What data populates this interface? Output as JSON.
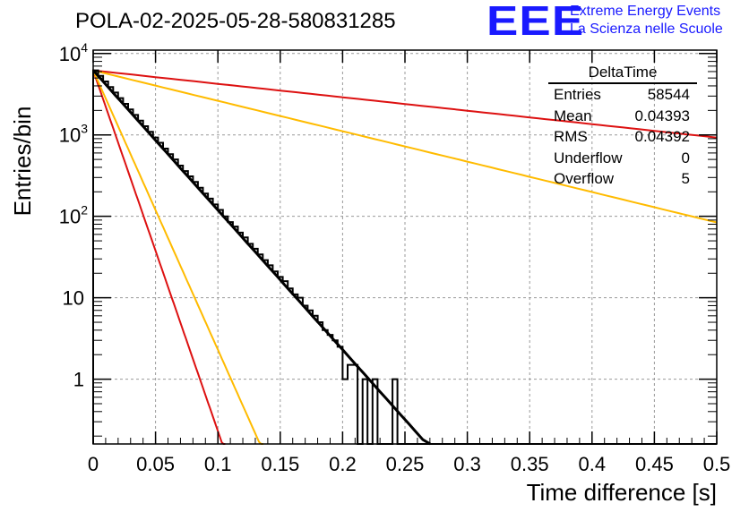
{
  "title": "POLA-02-2025-05-28-580831285",
  "logo": {
    "letters": "EEE",
    "line1": "Extreme Energy Events",
    "line2": "La Scienza nelle Scuole"
  },
  "stats_box": {
    "title": "DeltaTime",
    "rows": [
      {
        "label": "Entries",
        "value": "58544"
      },
      {
        "label": "Mean",
        "value": "0.04393"
      },
      {
        "label": "RMS",
        "value": "0.04392"
      },
      {
        "label": "Underflow",
        "value": "0"
      },
      {
        "label": "Overflow",
        "value": "5"
      }
    ]
  },
  "colors": {
    "histogram": "#000000",
    "fit": "#000000",
    "red": "#dd1111",
    "orange": "#ffbb00",
    "grid": "#999999",
    "logo": "#1a1aff"
  },
  "chart_data": {
    "type": "histogram",
    "xlabel": "Time difference [s]",
    "ylabel": "Entries/bin",
    "xlim": [
      0,
      0.5
    ],
    "ylim": [
      0.16,
      11000
    ],
    "yscale": "log",
    "grid": true,
    "x_ticks": [
      {
        "value": 0,
        "label": "0"
      },
      {
        "value": 0.05,
        "label": "0.05"
      },
      {
        "value": 0.1,
        "label": "0.1"
      },
      {
        "value": 0.15,
        "label": "0.15"
      },
      {
        "value": 0.2,
        "label": "0.2"
      },
      {
        "value": 0.25,
        "label": "0.25"
      },
      {
        "value": 0.3,
        "label": "0.3"
      },
      {
        "value": 0.35,
        "label": "0.35"
      },
      {
        "value": 0.4,
        "label": "0.4"
      },
      {
        "value": 0.45,
        "label": "0.45"
      },
      {
        "value": 0.5,
        "label": "0.5"
      }
    ],
    "y_ticks": [
      {
        "value": 1,
        "base": "1",
        "exp": ""
      },
      {
        "value": 10,
        "base": "10",
        "exp": ""
      },
      {
        "value": 100,
        "base": "10",
        "exp": "2"
      },
      {
        "value": 1000,
        "base": "10",
        "exp": "3"
      },
      {
        "value": 10000,
        "base": "10",
        "exp": "4"
      }
    ],
    "histogram": {
      "name": "DeltaTime",
      "bin_width": 0.004,
      "x_start": 0,
      "counts": [
        6200,
        5320,
        4540,
        3880,
        3310,
        2830,
        2410,
        2060,
        1760,
        1500,
        1280,
        1090,
        930,
        800,
        680,
        580,
        500,
        420,
        360,
        310,
        265,
        225,
        190,
        165,
        140,
        120,
        100,
        85,
        75,
        63,
        55,
        46,
        40,
        34,
        29,
        25,
        21,
        18,
        16,
        13,
        11,
        10,
        8,
        7,
        6,
        5,
        4,
        3.5,
        3,
        2.5,
        1,
        1.5,
        1.5,
        0.1,
        1,
        0.1,
        1,
        0.1,
        0.1,
        0.1,
        1,
        0.1,
        0.1,
        0.1,
        0.1,
        0.1,
        0.1,
        0.1,
        0.1,
        0.1,
        0.1,
        0.1,
        0.1,
        0.1,
        0.1,
        0.1,
        0.1,
        0.1,
        0.1,
        0.1,
        0.1,
        0.1,
        0.1,
        0.1,
        0.1,
        0.1,
        0.1,
        0.1,
        0.1,
        0.1,
        0.1,
        0.1,
        0.1,
        0.1,
        0.1,
        0.1,
        0.1,
        0.1,
        0.1,
        0.1,
        0.1,
        0.1,
        0.1,
        0.1,
        0.1,
        0.1,
        0.1,
        0.1,
        0.1,
        0.1,
        0.1,
        0.1,
        0.1,
        0.1,
        0.1,
        0.1,
        0.1,
        0.1,
        0.1,
        0.1,
        0.1,
        0.1,
        0.1,
        0.1,
        0.1
      ]
    },
    "curves": [
      {
        "name": "fit",
        "color": "#000000",
        "amplitude": 6200,
        "slope": -39.5,
        "x_end": 0.47
      },
      {
        "name": "red-shallow",
        "color": "#dd1111",
        "amplitude": 6200,
        "slope": -3.8,
        "x_end": 0.5
      },
      {
        "name": "orange-shallow",
        "color": "#ffbb00",
        "amplitude": 6200,
        "slope": -8.6,
        "x_end": 0.5
      },
      {
        "name": "red-steep",
        "color": "#dd1111",
        "amplitude": 6200,
        "slope": -102,
        "x_end": 0.11
      },
      {
        "name": "orange-steep",
        "color": "#ffbb00",
        "amplitude": 6200,
        "slope": -79,
        "x_end": 0.14
      }
    ]
  }
}
